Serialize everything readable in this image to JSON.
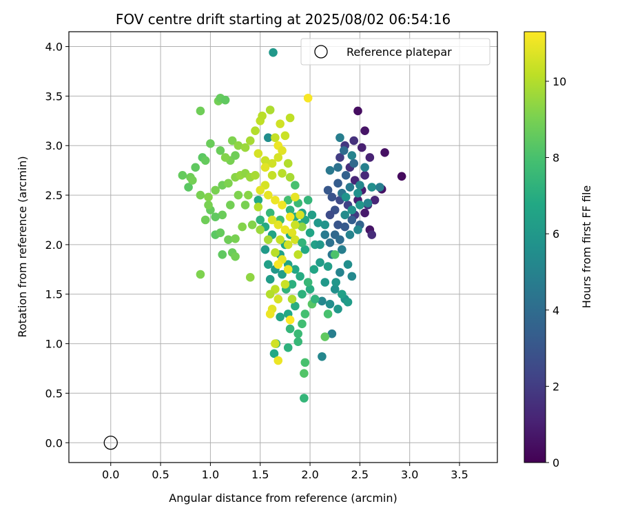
{
  "chart_data": {
    "type": "scatter",
    "title": "FOV centre drift starting at 2025/08/02 06:54:16",
    "xlabel": "Angular distance from reference (arcmin)",
    "ylabel": "Rotation from reference (arcmin)",
    "xlim": [
      -0.42,
      3.88
    ],
    "ylim": [
      -0.2,
      4.15
    ],
    "xticks": [
      "0.0",
      "0.5",
      "1.0",
      "1.5",
      "2.0",
      "2.5",
      "3.0",
      "3.5"
    ],
    "yticks": [
      "0.0",
      "0.5",
      "1.0",
      "1.5",
      "2.0",
      "2.5",
      "3.0",
      "3.5",
      "4.0"
    ],
    "grid": true,
    "legend": {
      "placement": "top-right",
      "entries": [
        "Reference platepar"
      ]
    },
    "reference": {
      "x": 0.0,
      "y": 0.0
    },
    "colorbar": {
      "label": "Hours from first FF file",
      "range": [
        0,
        11.3
      ],
      "ticks": [
        "0",
        "2",
        "4",
        "6",
        "8",
        "10"
      ],
      "colormap": "viridis"
    },
    "series": [
      {
        "points": [
          [
            2.48,
            3.35,
            0.4
          ],
          [
            2.55,
            3.15,
            0.6
          ],
          [
            2.75,
            2.93,
            0.5
          ],
          [
            2.92,
            2.69,
            0.3
          ],
          [
            2.72,
            2.56,
            0.5
          ],
          [
            2.6,
            2.15,
            0.6
          ],
          [
            2.62,
            2.1,
            1.4
          ],
          [
            2.55,
            2.32,
            0.8
          ],
          [
            2.48,
            2.45,
            1.0
          ],
          [
            2.52,
            2.55,
            0.9
          ],
          [
            2.45,
            2.65,
            1.2
          ],
          [
            2.4,
            2.78,
            1.5
          ],
          [
            2.52,
            2.98,
            1.0
          ],
          [
            2.44,
            3.05,
            1.6
          ],
          [
            2.35,
            3.0,
            1.8
          ],
          [
            2.3,
            2.88,
            2.0
          ],
          [
            2.6,
            2.88,
            1.1
          ],
          [
            2.55,
            2.7,
            1.3
          ],
          [
            2.65,
            2.45,
            1.2
          ],
          [
            2.58,
            2.4,
            1.5
          ],
          [
            2.45,
            2.3,
            1.9
          ],
          [
            2.38,
            2.4,
            2.2
          ],
          [
            2.3,
            2.45,
            2.5
          ],
          [
            2.25,
            2.35,
            2.8
          ],
          [
            2.2,
            2.3,
            2.6
          ],
          [
            2.28,
            2.2,
            3.0
          ],
          [
            2.35,
            2.18,
            3.2
          ],
          [
            2.42,
            2.25,
            3.4
          ],
          [
            2.5,
            2.2,
            3.6
          ],
          [
            2.22,
            2.48,
            2.9
          ],
          [
            2.18,
            2.55,
            3.1
          ],
          [
            2.28,
            2.62,
            3.3
          ],
          [
            2.36,
            2.7,
            3.5
          ],
          [
            2.44,
            2.82,
            3.8
          ],
          [
            2.34,
            2.95,
            4.0
          ],
          [
            2.28,
            2.78,
            4.2
          ],
          [
            2.2,
            2.75,
            4.5
          ],
          [
            2.3,
            3.08,
            4.8
          ],
          [
            2.42,
            2.9,
            5.0
          ],
          [
            2.5,
            2.6,
            5.2
          ],
          [
            2.62,
            2.58,
            5.5
          ],
          [
            2.7,
            2.58,
            4.8
          ],
          [
            2.58,
            2.42,
            5.0
          ],
          [
            2.4,
            2.58,
            4.6
          ],
          [
            2.32,
            2.52,
            4.4
          ],
          [
            2.25,
            2.1,
            3.8
          ],
          [
            2.3,
            2.05,
            4.0
          ],
          [
            2.2,
            2.02,
            4.2
          ],
          [
            2.15,
            2.1,
            4.6
          ],
          [
            2.22,
            1.9,
            4.5
          ],
          [
            2.32,
            1.95,
            4.8
          ],
          [
            2.4,
            2.1,
            5.0
          ],
          [
            2.48,
            2.15,
            5.2
          ],
          [
            2.38,
            1.8,
            5.5
          ],
          [
            2.3,
            1.72,
            5.0
          ],
          [
            2.42,
            1.68,
            5.3
          ],
          [
            2.25,
            1.55,
            5.6
          ],
          [
            2.35,
            1.45,
            5.8
          ],
          [
            2.28,
            1.35,
            6.0
          ],
          [
            2.2,
            1.4,
            5.5
          ],
          [
            2.12,
            1.43,
            5.2
          ],
          [
            2.22,
            1.1,
            4.8
          ],
          [
            2.12,
            0.87,
            5.2
          ],
          [
            2.15,
            1.62,
            6.0
          ],
          [
            2.1,
            1.82,
            6.2
          ],
          [
            2.05,
            2.0,
            6.4
          ],
          [
            2.0,
            2.12,
            6.6
          ],
          [
            1.95,
            2.25,
            6.8
          ],
          [
            1.9,
            2.2,
            7.0
          ],
          [
            1.85,
            2.28,
            6.9
          ],
          [
            1.8,
            2.35,
            7.2
          ],
          [
            1.92,
            2.32,
            6.5
          ],
          [
            2.02,
            2.3,
            6.3
          ],
          [
            2.08,
            2.22,
            6.0
          ],
          [
            2.15,
            2.2,
            5.8
          ],
          [
            1.98,
            2.45,
            7.4
          ],
          [
            1.88,
            2.42,
            7.6
          ],
          [
            1.8,
            2.1,
            6.8
          ],
          [
            1.75,
            2.0,
            6.6
          ],
          [
            1.7,
            1.9,
            6.4
          ],
          [
            1.78,
            1.8,
            6.5
          ],
          [
            1.85,
            1.75,
            6.7
          ],
          [
            1.9,
            1.68,
            6.9
          ],
          [
            1.82,
            1.6,
            7.1
          ],
          [
            1.76,
            1.55,
            7.3
          ],
          [
            1.92,
            1.5,
            7.2
          ],
          [
            1.85,
            1.38,
            7.0
          ],
          [
            1.78,
            1.3,
            6.8
          ],
          [
            1.7,
            1.27,
            6.6
          ],
          [
            1.8,
            1.15,
            7.4
          ],
          [
            1.88,
            1.1,
            7.6
          ],
          [
            1.92,
            1.2,
            7.8
          ],
          [
            1.95,
            1.3,
            7.9
          ],
          [
            1.88,
            1.02,
            7.5
          ],
          [
            1.78,
            0.96,
            7.2
          ],
          [
            1.66,
            1.0,
            7.0
          ],
          [
            1.64,
            0.9,
            6.8
          ],
          [
            1.95,
            0.81,
            8.0
          ],
          [
            1.94,
            0.7,
            8.2
          ],
          [
            1.94,
            0.45,
            7.4
          ],
          [
            2.02,
            1.4,
            8.3
          ],
          [
            2.15,
            1.07,
            8.5
          ],
          [
            2.18,
            1.3,
            8.0
          ],
          [
            2.25,
            1.9,
            8.1
          ],
          [
            1.6,
            1.65,
            6.2
          ],
          [
            1.58,
            1.8,
            6.4
          ],
          [
            1.55,
            1.95,
            6.1
          ],
          [
            1.65,
            1.75,
            6.0
          ],
          [
            1.72,
            1.7,
            6.3
          ],
          [
            1.62,
            2.1,
            6.6
          ],
          [
            1.55,
            2.18,
            6.9
          ],
          [
            1.5,
            2.25,
            7.2
          ],
          [
            1.48,
            2.45,
            6.8
          ],
          [
            1.58,
            3.08,
            5.5
          ],
          [
            1.63,
            3.94,
            6.0
          ],
          [
            1.6,
            2.32,
            7.5
          ],
          [
            1.7,
            2.25,
            7.7
          ],
          [
            1.78,
            2.45,
            7.9
          ],
          [
            1.85,
            2.6,
            8.0
          ],
          [
            0.9,
            3.35,
            8.8
          ],
          [
            1.08,
            3.45,
            8.9
          ],
          [
            1.1,
            3.48,
            8.6
          ],
          [
            1.15,
            3.46,
            8.5
          ],
          [
            0.92,
            2.88,
            8.4
          ],
          [
            0.95,
            2.85,
            8.6
          ],
          [
            1.0,
            3.02,
            8.7
          ],
          [
            0.85,
            2.78,
            8.5
          ],
          [
            0.8,
            2.68,
            8.8
          ],
          [
            0.72,
            2.7,
            8.6
          ],
          [
            0.78,
            2.58,
            8.4
          ],
          [
            0.82,
            2.65,
            8.9
          ],
          [
            0.9,
            2.5,
            9.0
          ],
          [
            0.98,
            2.48,
            9.2
          ],
          [
            1.05,
            2.55,
            9.0
          ],
          [
            1.12,
            2.6,
            8.8
          ],
          [
            1.18,
            2.62,
            9.1
          ],
          [
            1.25,
            2.68,
            9.3
          ],
          [
            1.3,
            2.7,
            9.5
          ],
          [
            1.35,
            2.72,
            9.4
          ],
          [
            1.4,
            2.68,
            9.6
          ],
          [
            1.45,
            2.7,
            9.8
          ],
          [
            1.2,
            2.85,
            9.0
          ],
          [
            1.25,
            2.9,
            8.8
          ],
          [
            1.15,
            2.88,
            9.2
          ],
          [
            1.1,
            2.95,
            8.7
          ],
          [
            1.22,
            3.05,
            9.1
          ],
          [
            1.28,
            3.0,
            9.4
          ],
          [
            1.35,
            2.98,
            9.6
          ],
          [
            1.4,
            3.05,
            9.8
          ],
          [
            1.45,
            3.15,
            10.0
          ],
          [
            1.5,
            3.25,
            10.2
          ],
          [
            1.52,
            3.3,
            10.1
          ],
          [
            1.6,
            3.36,
            9.9
          ],
          [
            1.65,
            3.08,
            10.3
          ],
          [
            1.7,
            3.22,
            10.5
          ],
          [
            1.75,
            3.1,
            10.4
          ],
          [
            1.8,
            3.28,
            10.2
          ],
          [
            1.98,
            3.48,
            11.2
          ],
          [
            1.68,
            3.0,
            11.0
          ],
          [
            1.72,
            2.95,
            10.8
          ],
          [
            1.68,
            2.88,
            10.6
          ],
          [
            1.62,
            2.82,
            10.5
          ],
          [
            1.55,
            2.85,
            10.4
          ],
          [
            1.78,
            2.82,
            10.0
          ],
          [
            1.8,
            2.68,
            9.8
          ],
          [
            1.72,
            2.72,
            10.1
          ],
          [
            1.62,
            2.7,
            10.3
          ],
          [
            1.55,
            2.6,
            10.6
          ],
          [
            1.5,
            2.55,
            10.8
          ],
          [
            1.58,
            2.5,
            10.9
          ],
          [
            1.65,
            2.45,
            11.0
          ],
          [
            1.72,
            2.4,
            11.1
          ],
          [
            1.8,
            2.28,
            11.2
          ],
          [
            1.75,
            2.15,
            11.0
          ],
          [
            1.68,
            2.2,
            10.9
          ],
          [
            1.62,
            2.25,
            10.7
          ],
          [
            1.82,
            2.12,
            10.8
          ],
          [
            1.85,
            2.05,
            10.6
          ],
          [
            1.78,
            2.0,
            10.5
          ],
          [
            1.7,
            2.05,
            10.3
          ],
          [
            1.65,
            1.92,
            10.1
          ],
          [
            1.72,
            1.85,
            10.9
          ],
          [
            1.78,
            1.75,
            11.0
          ],
          [
            1.68,
            1.8,
            11.2
          ],
          [
            1.75,
            1.6,
            10.4
          ],
          [
            1.65,
            1.55,
            10.2
          ],
          [
            1.6,
            1.5,
            10.0
          ],
          [
            1.68,
            1.45,
            10.6
          ],
          [
            1.62,
            1.35,
            10.8
          ],
          [
            1.6,
            1.3,
            11.0
          ],
          [
            1.65,
            1.0,
            10.5
          ],
          [
            1.68,
            0.83,
            11.0
          ],
          [
            1.8,
            1.24,
            11.3
          ],
          [
            1.82,
            1.45,
            10.0
          ],
          [
            1.88,
            1.9,
            10.2
          ],
          [
            1.92,
            2.18,
            9.4
          ],
          [
            1.58,
            2.05,
            9.8
          ],
          [
            1.5,
            2.15,
            9.6
          ],
          [
            1.42,
            2.2,
            9.2
          ],
          [
            1.35,
            2.4,
            9.0
          ],
          [
            1.38,
            2.5,
            9.3
          ],
          [
            1.28,
            2.5,
            9.1
          ],
          [
            1.2,
            2.4,
            8.9
          ],
          [
            1.12,
            2.3,
            8.7
          ],
          [
            1.05,
            2.28,
            8.5
          ],
          [
            1.0,
            2.35,
            8.6
          ],
          [
            0.95,
            2.25,
            8.8
          ],
          [
            0.98,
            2.4,
            9.0
          ],
          [
            1.05,
            2.1,
            8.4
          ],
          [
            1.1,
            2.12,
            8.6
          ],
          [
            1.18,
            2.05,
            8.8
          ],
          [
            1.25,
            2.06,
            9.0
          ],
          [
            1.32,
            2.18,
            9.2
          ],
          [
            1.12,
            1.9,
            8.5
          ],
          [
            1.22,
            1.92,
            8.7
          ],
          [
            1.25,
            1.88,
            8.9
          ],
          [
            1.4,
            1.67,
            9.4
          ],
          [
            0.9,
            1.7,
            9.1
          ],
          [
            1.48,
            2.92,
            10.6
          ],
          [
            1.55,
            2.78,
            10.8
          ],
          [
            1.48,
            2.38,
            10.0
          ],
          [
            1.85,
            2.2,
            10.4
          ],
          [
            1.9,
            2.3,
            10.6
          ],
          [
            1.85,
            2.48,
            10.9
          ],
          [
            2.1,
            2.0,
            6.0
          ],
          [
            2.18,
            1.78,
            6.3
          ],
          [
            2.26,
            1.62,
            5.9
          ],
          [
            2.04,
            1.75,
            6.6
          ],
          [
            1.95,
            1.95,
            6.8
          ],
          [
            2.0,
            1.55,
            7.0
          ],
          [
            2.05,
            1.45,
            7.3
          ],
          [
            1.98,
            1.62,
            7.5
          ],
          [
            1.92,
            2.02,
            7.3
          ],
          [
            2.35,
            2.3,
            5.4
          ],
          [
            2.42,
            2.35,
            5.7
          ],
          [
            2.5,
            2.4,
            5.9
          ],
          [
            2.48,
            2.52,
            5.6
          ],
          [
            2.36,
            2.48,
            5.8
          ],
          [
            2.55,
            2.78,
            4.9
          ],
          [
            2.32,
            1.5,
            6.4
          ],
          [
            2.38,
            1.42,
            6.2
          ]
        ]
      }
    ]
  }
}
